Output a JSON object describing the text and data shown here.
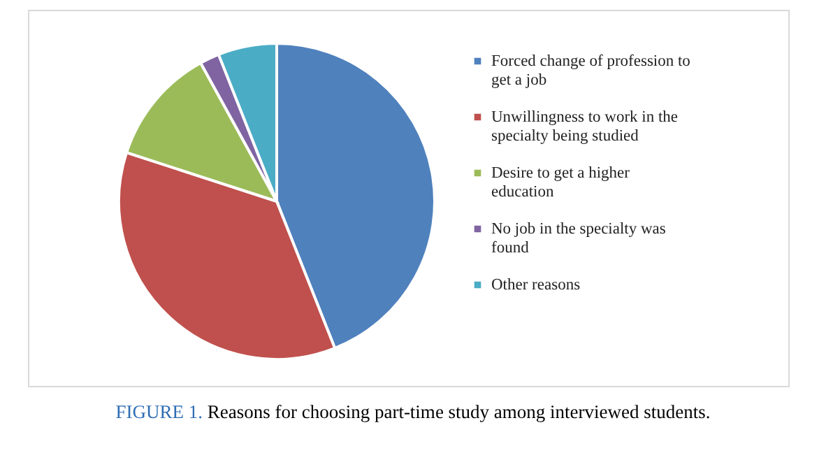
{
  "chart_data": {
    "type": "pie",
    "categories": [
      "Forced change of profession to get a job",
      "Unwillingness to work in the specialty being studied",
      "Desire to get a higher education",
      "No job in the specialty was found",
      "Other reasons"
    ],
    "values": [
      44,
      36,
      12,
      2,
      6
    ],
    "colors": [
      "#4f81bd",
      "#c0504d",
      "#9bbb59",
      "#8064a2",
      "#4bacc6"
    ],
    "legend": "right",
    "annotations": [
      "FIGURE 1. Reasons for choosing part-time study among interviewed students."
    ]
  }
}
